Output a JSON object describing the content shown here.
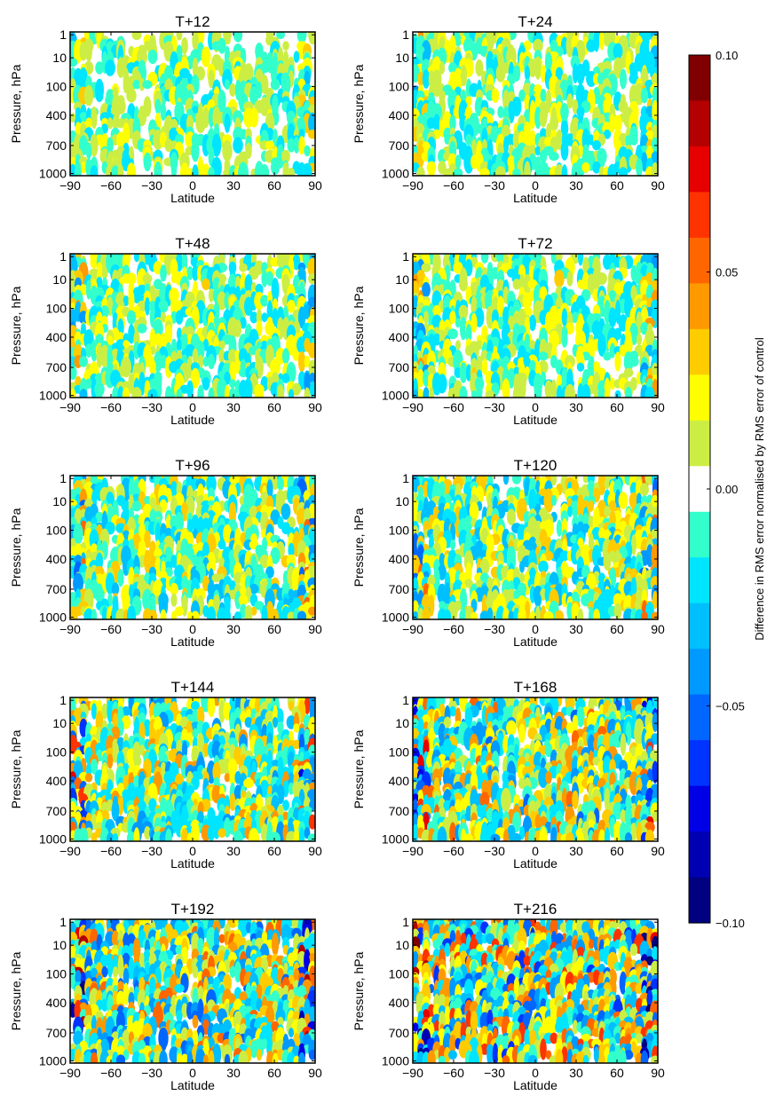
{
  "chart_data": {
    "type": "heatmap",
    "panels": [
      {
        "title": "T+12",
        "intensity": 0.3
      },
      {
        "title": "T+24",
        "intensity": 0.35
      },
      {
        "title": "T+48",
        "intensity": 0.4
      },
      {
        "title": "T+72",
        "intensity": 0.4
      },
      {
        "title": "T+96",
        "intensity": 0.5
      },
      {
        "title": "T+120",
        "intensity": 0.55
      },
      {
        "title": "T+144",
        "intensity": 0.65
      },
      {
        "title": "T+168",
        "intensity": 0.75
      },
      {
        "title": "T+192",
        "intensity": 0.85
      },
      {
        "title": "T+216",
        "intensity": 0.95
      }
    ],
    "x_axis": {
      "label": "Latitude",
      "ticks": [
        "−90",
        "−60",
        "−30",
        "0",
        "30",
        "60",
        "90"
      ],
      "range": [
        -90,
        90
      ]
    },
    "y_axis": {
      "label": "Pressure, hPa",
      "ticks": [
        "1",
        "10",
        "100",
        "400",
        "700",
        "1000"
      ]
    },
    "colorbar": {
      "label": "Difference in RMS error normalised by RMS error of control",
      "ticks": [
        "0.10",
        "0.05",
        "0.00",
        "−0.05",
        "−0.10"
      ],
      "range": [
        -0.1,
        0.1
      ],
      "levels": [
        "#800000",
        "#b30000",
        "#e60000",
        "#ff3300",
        "#ff6600",
        "#ff9900",
        "#ffcc00",
        "#ffff00",
        "#ccee44",
        "#ffffff",
        "#33ffcc",
        "#00e5ff",
        "#00bfff",
        "#0099ff",
        "#0066ff",
        "#0033ff",
        "#0000e6",
        "#0000b3",
        "#000080"
      ]
    }
  }
}
